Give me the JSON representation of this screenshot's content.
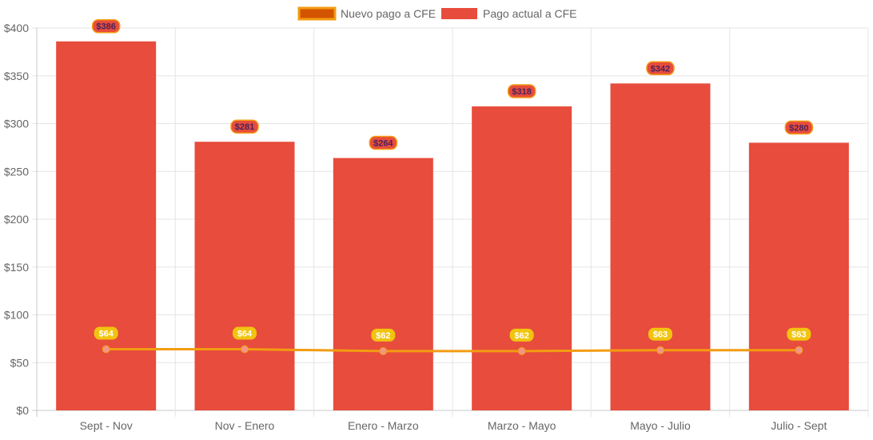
{
  "chart_data": {
    "type": "bar",
    "categories": [
      "Sept - Nov",
      "Nov - Enero",
      "Enero - Marzo",
      "Marzo - Mayo",
      "Mayo - Julio",
      "Julio - Sept"
    ],
    "series": [
      {
        "name": "Nuevo pago a CFE",
        "kind": "line",
        "values": [
          64,
          64,
          62,
          62,
          63,
          63
        ],
        "labels": [
          "$64",
          "$64",
          "$62",
          "$62",
          "$63",
          "$63"
        ],
        "color": "#f39c12",
        "legend_fill": "#d35400",
        "legend_border": "#f39c12",
        "point_color": "#f1948a",
        "label_bg": "#f1c40f",
        "label_text_color": "#ffffff"
      },
      {
        "name": "Pago actual a CFE",
        "kind": "bar",
        "values": [
          386,
          281,
          264,
          318,
          342,
          280
        ],
        "labels": [
          "$386",
          "$281",
          "$264",
          "$318",
          "$342",
          "$280"
        ],
        "color": "#e74c3c",
        "label_bg": "#e74c3c",
        "label_border": "#f39c12",
        "label_text_color": "#4a235a"
      }
    ],
    "y_ticks": [
      "$0",
      "$50",
      "$100",
      "$150",
      "$200",
      "$250",
      "$300",
      "$350",
      "$400"
    ],
    "ylim": [
      0,
      400
    ],
    "y_step": 50,
    "grid": true,
    "legend_position": "top-center",
    "title": "",
    "xlabel": "",
    "ylabel": ""
  }
}
